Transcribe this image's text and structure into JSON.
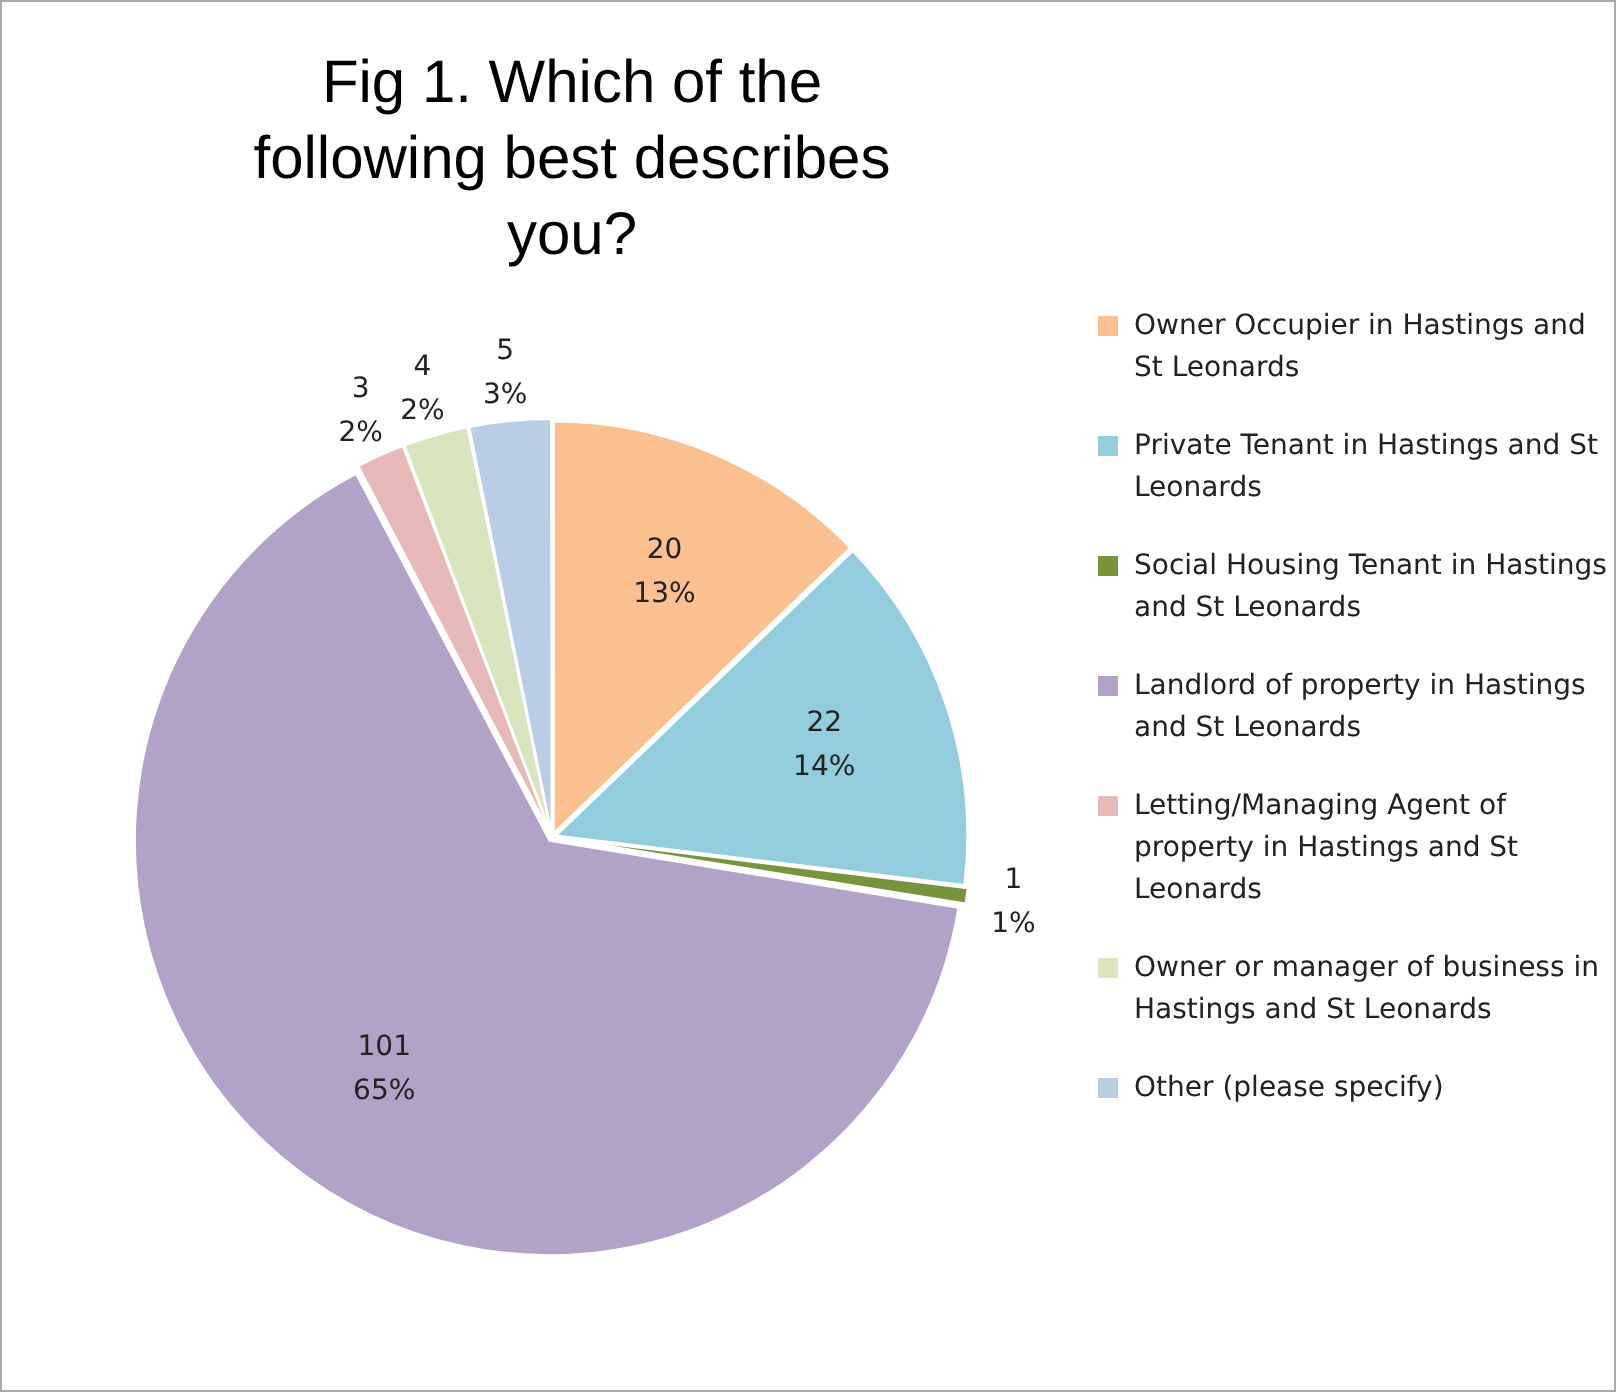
{
  "chart_data": {
    "type": "pie",
    "title": "Fig 1. Which of the following best describes you?",
    "categories": [
      "Owner Occupier in Hastings and St Leonards",
      "Private Tenant in Hastings and St Leonards",
      "Social Housing Tenant in Hastings and St Leonards",
      "Landlord of property in Hastings and St Leonards",
      "Letting/Managing Agent of property in Hastings and St Leonards",
      "Owner or manager of business in Hastings and St Leonards",
      "Other (please specify)"
    ],
    "values": [
      20,
      22,
      1,
      101,
      3,
      4,
      5
    ],
    "colors": [
      "#fac090",
      "#93cddd",
      "#77933c",
      "#b3a2c7",
      "#e6b9b8",
      "#d7e4bd",
      "#b9cde5"
    ],
    "value_labels": [
      "20\n13%",
      "22\n14%",
      "1\n1%",
      "101\n65%",
      "3\n2%",
      "4\n2%",
      "5\n3%"
    ],
    "legend": "right"
  }
}
